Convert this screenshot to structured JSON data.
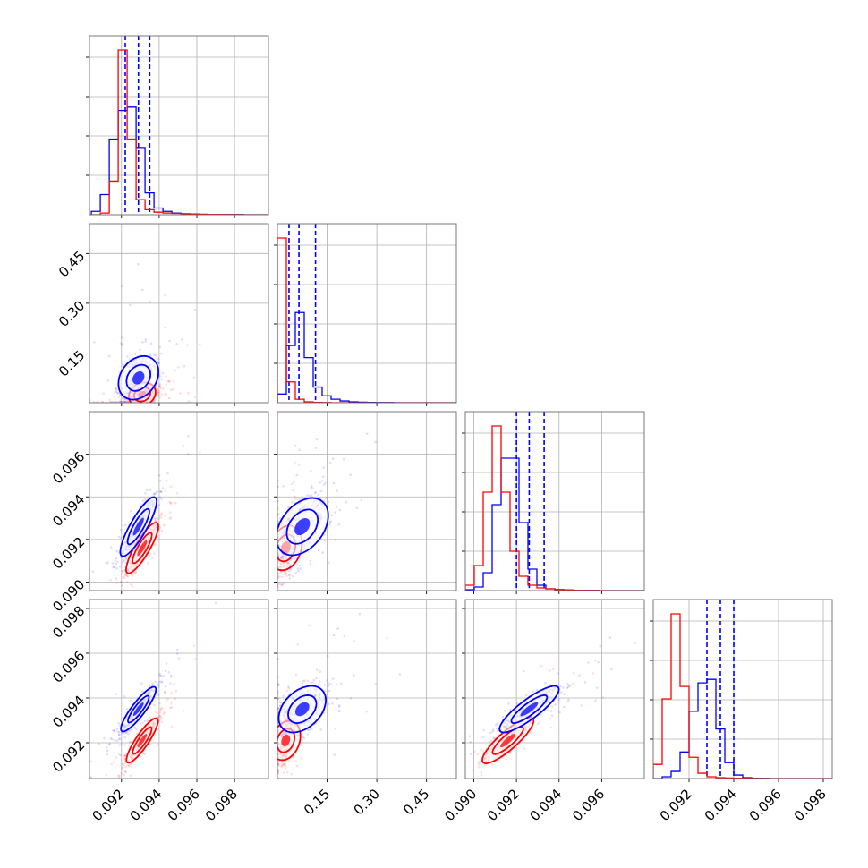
{
  "chart_data": {
    "type": "corner",
    "colors": {
      "blue": "#0000ff",
      "red": "#ff0000"
    },
    "params": [
      {
        "range": [
          0.0903,
          0.0998
        ],
        "ticks": [
          0.092,
          0.094,
          0.096,
          0.098
        ],
        "tick_labels": [
          "0.092",
          "0.094",
          "0.096",
          "0.098"
        ]
      },
      {
        "range": [
          0.0,
          0.54
        ],
        "ticks": [
          0.15,
          0.3,
          0.45
        ],
        "tick_labels": [
          "0.15",
          "0.30",
          "0.45"
        ]
      },
      {
        "range": [
          0.0896,
          0.098
        ],
        "ticks": [
          0.09,
          0.092,
          0.094,
          0.096
        ],
        "tick_labels": [
          "0.090",
          "0.092",
          "0.094",
          "0.096"
        ]
      },
      {
        "range": [
          0.0904,
          0.0984
        ],
        "ticks": [
          0.092,
          0.094,
          0.096,
          0.098
        ],
        "tick_labels": [
          "0.092",
          "0.094",
          "0.096",
          "0.098"
        ]
      }
    ],
    "series": [
      {
        "color": "blue",
        "mean": [
          0.0929,
          0.075,
          0.0926,
          0.0935
        ],
        "std": [
          0.00045,
          0.035,
          0.0007,
          0.0005
        ],
        "quantiles": [
          [
            0.0922,
            0.0929,
            0.0935
          ],
          [
            0.035,
            0.065,
            0.115
          ],
          [
            0.092,
            0.0926,
            0.0933
          ],
          [
            0.0928,
            0.0934,
            0.094
          ]
        ],
        "hist": [
          {
            "edges": [
              0.0904,
              0.0999
            ],
            "counts": [
              0.02,
              0.12,
              0.45,
              0.62,
              0.64,
              0.4,
              0.13,
              0.04,
              0.02,
              0.01,
              0.005,
              0.004,
              0.002,
              0.002,
              0.001,
              0.001,
              0.001,
              0,
              0,
              0
            ]
          },
          {
            "edges": [
              0.0,
              0.54
            ],
            "counts": [
              0.05,
              0.33,
              0.52,
              0.26,
              0.09,
              0.04,
              0.02,
              0.01,
              0.005,
              0.003,
              0.002,
              0.001,
              0.001,
              0,
              0,
              0,
              0,
              0,
              0,
              0
            ]
          },
          {
            "edges": [
              0.0896,
              0.098
            ],
            "counts": [
              0.005,
              0.02,
              0.1,
              0.48,
              0.74,
              0.74,
              0.38,
              0.12,
              0.03,
              0.01,
              0.005,
              0.003,
              0.002,
              0.001,
              0.001,
              0,
              0,
              0,
              0,
              0
            ]
          },
          {
            "edges": [
              0.0904,
              0.0984
            ],
            "counts": [
              0,
              0.01,
              0.04,
              0.15,
              0.38,
              0.54,
              0.56,
              0.28,
              0.09,
              0.02,
              0.005,
              0.002,
              0.001,
              0,
              0,
              0,
              0,
              0,
              0,
              0
            ]
          }
        ]
      },
      {
        "color": "red",
        "mean": [
          0.0931,
          0.025,
          0.0916,
          0.0921
        ],
        "std": [
          0.0004,
          0.012,
          0.0006,
          0.0005
        ],
        "quantiles": [],
        "hist": [
          {
            "edges": [
              0.0904,
              0.0999
            ],
            "counts": [
              0,
              0.01,
              0.2,
              0.98,
              0.45,
              0.09,
              0.03,
              0.015,
              0.01,
              0.008,
              0.006,
              0.004,
              0.003,
              0.002,
              0.001,
              0.001,
              0,
              0,
              0,
              0
            ]
          },
          {
            "edges": [
              0.0,
              0.54
            ],
            "counts": [
              0.95,
              0.12,
              0.02,
              0.005,
              0.002,
              0.001,
              0,
              0,
              0,
              0,
              0,
              0,
              0,
              0,
              0,
              0,
              0,
              0,
              0,
              0
            ]
          },
          {
            "edges": [
              0.0896,
              0.098
            ],
            "counts": [
              0.03,
              0.14,
              0.55,
              0.92,
              0.55,
              0.22,
              0.08,
              0.03,
              0.015,
              0.01,
              0.006,
              0.004,
              0.002,
              0.001,
              0.001,
              0,
              0,
              0,
              0,
              0
            ]
          },
          {
            "edges": [
              0.0904,
              0.0984
            ],
            "counts": [
              0.08,
              0.45,
              0.93,
              0.52,
              0.12,
              0.03,
              0.01,
              0.005,
              0.003,
              0.002,
              0.001,
              0.001,
              0,
              0,
              0,
              0,
              0,
              0,
              0,
              0
            ]
          }
        ]
      }
    ],
    "correlations": {
      "0-1": 0.35,
      "0-2": 0.92,
      "0-3": 0.93,
      "1-2": 0.45,
      "1-3": 0.45,
      "2-3": 0.9
    },
    "grid": true,
    "title": "",
    "axis_labels": []
  }
}
